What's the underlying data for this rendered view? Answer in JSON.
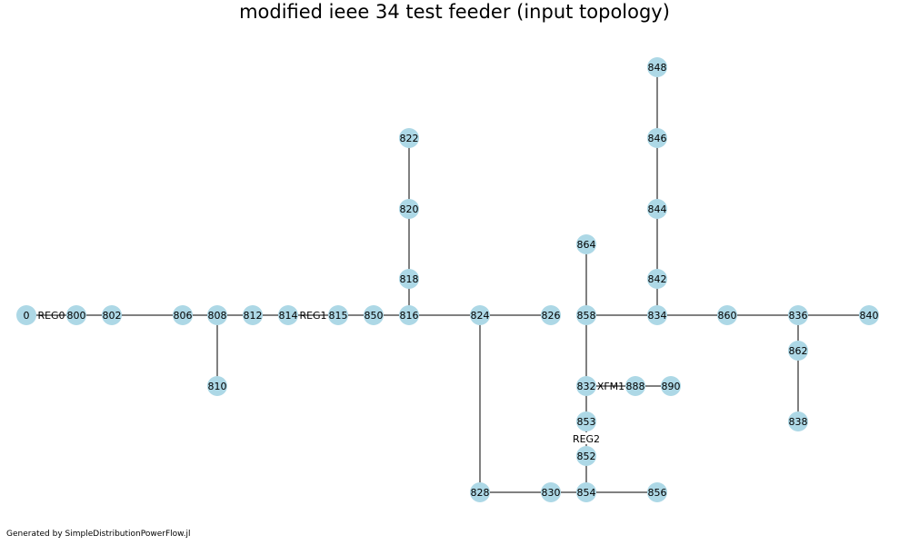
{
  "title": "modified ieee 34 test feeder (input topology)",
  "footer": "Generated by SimpleDistributionPowerFlow.jl",
  "style": {
    "node_color": "#add8e6",
    "edge_color": "#000000"
  },
  "nodes": [
    "0",
    "800",
    "802",
    "806",
    "808",
    "810",
    "812",
    "814",
    "815",
    "850",
    "816",
    "818",
    "820",
    "822",
    "824",
    "826",
    "828",
    "830",
    "854",
    "856",
    "852",
    "853",
    "832",
    "888",
    "890",
    "858",
    "864",
    "834",
    "842",
    "844",
    "846",
    "848",
    "860",
    "836",
    "840",
    "862",
    "838"
  ],
  "edges": [
    {
      "from": "0",
      "to": "800",
      "label": "REG0"
    },
    {
      "from": "800",
      "to": "802",
      "label": ""
    },
    {
      "from": "802",
      "to": "806",
      "label": ""
    },
    {
      "from": "806",
      "to": "808",
      "label": ""
    },
    {
      "from": "808",
      "to": "810",
      "label": ""
    },
    {
      "from": "808",
      "to": "812",
      "label": ""
    },
    {
      "from": "812",
      "to": "814",
      "label": ""
    },
    {
      "from": "814",
      "to": "815",
      "label": "REG1"
    },
    {
      "from": "815",
      "to": "850",
      "label": ""
    },
    {
      "from": "850",
      "to": "816",
      "label": ""
    },
    {
      "from": "816",
      "to": "818",
      "label": ""
    },
    {
      "from": "818",
      "to": "820",
      "label": ""
    },
    {
      "from": "820",
      "to": "822",
      "label": ""
    },
    {
      "from": "816",
      "to": "824",
      "label": ""
    },
    {
      "from": "824",
      "to": "826",
      "label": ""
    },
    {
      "from": "824",
      "to": "828",
      "label": ""
    },
    {
      "from": "828",
      "to": "830",
      "label": ""
    },
    {
      "from": "830",
      "to": "854",
      "label": ""
    },
    {
      "from": "854",
      "to": "856",
      "label": ""
    },
    {
      "from": "854",
      "to": "852",
      "label": ""
    },
    {
      "from": "852",
      "to": "853",
      "label": "REG2"
    },
    {
      "from": "853",
      "to": "832",
      "label": ""
    },
    {
      "from": "832",
      "to": "888",
      "label": "XFM1"
    },
    {
      "from": "888",
      "to": "890",
      "label": ""
    },
    {
      "from": "832",
      "to": "858",
      "label": ""
    },
    {
      "from": "858",
      "to": "864",
      "label": ""
    },
    {
      "from": "858",
      "to": "834",
      "label": ""
    },
    {
      "from": "834",
      "to": "842",
      "label": ""
    },
    {
      "from": "842",
      "to": "844",
      "label": ""
    },
    {
      "from": "844",
      "to": "846",
      "label": ""
    },
    {
      "from": "846",
      "to": "848",
      "label": ""
    },
    {
      "from": "834",
      "to": "860",
      "label": ""
    },
    {
      "from": "860",
      "to": "836",
      "label": ""
    },
    {
      "from": "836",
      "to": "840",
      "label": ""
    },
    {
      "from": "836",
      "to": "862",
      "label": ""
    },
    {
      "from": "862",
      "to": "838",
      "label": ""
    }
  ]
}
